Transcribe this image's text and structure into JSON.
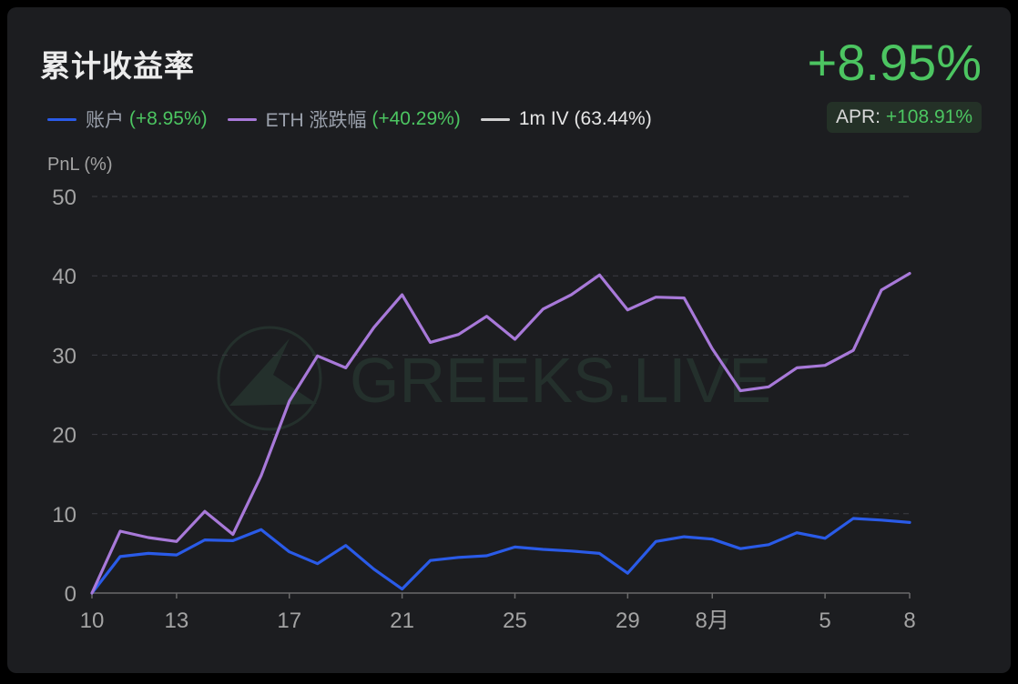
{
  "title": "累计收益率",
  "headline_value": "+8.95%",
  "apr": {
    "label": "APR:",
    "value": "+108.91%"
  },
  "legend": [
    {
      "name": "账户",
      "value": "(+8.95%)",
      "color": "#2a5be8",
      "value_positive": true
    },
    {
      "name": "ETH 涨跌幅",
      "value": "(+40.29%)",
      "color": "#a879d9",
      "value_positive": true
    },
    {
      "name": "1m IV",
      "value": "(63.44%)",
      "color": "#d0d0d0",
      "value_positive": false
    }
  ],
  "watermark": "GREEKS.LIVE",
  "chart_data": {
    "type": "line",
    "ylabel": "PnL (%)",
    "ylim": [
      0,
      50
    ],
    "yticks": [
      0,
      10,
      20,
      30,
      40,
      50
    ],
    "x_tick_labels": [
      {
        "day": 0,
        "label": "10"
      },
      {
        "day": 3,
        "label": "13"
      },
      {
        "day": 7,
        "label": "17"
      },
      {
        "day": 11,
        "label": "21"
      },
      {
        "day": 15,
        "label": "25"
      },
      {
        "day": 19,
        "label": "29"
      },
      {
        "day": 22,
        "label": "8月"
      },
      {
        "day": 26,
        "label": "5"
      },
      {
        "day": 29,
        "label": "8"
      }
    ],
    "x": [
      0,
      1,
      2,
      3,
      4,
      5,
      6,
      7,
      8,
      9,
      10,
      11,
      12,
      13,
      14,
      15,
      16,
      17,
      18,
      19,
      20,
      21,
      22,
      23,
      24,
      25,
      26,
      27,
      28,
      29
    ],
    "grid": true,
    "series": [
      {
        "name": "账户",
        "color": "#2a5be8",
        "values": [
          0,
          4.6,
          5.0,
          4.8,
          6.7,
          6.6,
          8.0,
          5.2,
          3.7,
          6.0,
          3.0,
          0.5,
          4.1,
          4.5,
          4.7,
          5.8,
          5.5,
          5.3,
          5.0,
          2.5,
          6.5,
          7.1,
          6.8,
          5.6,
          6.1,
          7.6,
          6.9,
          9.4,
          9.2,
          8.9
        ]
      },
      {
        "name": "ETH 涨跌幅",
        "color": "#a879d9",
        "values": [
          0,
          7.8,
          7.0,
          6.5,
          10.3,
          7.4,
          14.8,
          24.2,
          29.9,
          28.4,
          33.5,
          37.6,
          31.6,
          32.6,
          34.9,
          32.0,
          35.8,
          37.6,
          40.1,
          35.7,
          37.3,
          37.2,
          30.8,
          25.5,
          26.0,
          28.4,
          28.7,
          30.6,
          38.2,
          40.3
        ]
      }
    ]
  }
}
